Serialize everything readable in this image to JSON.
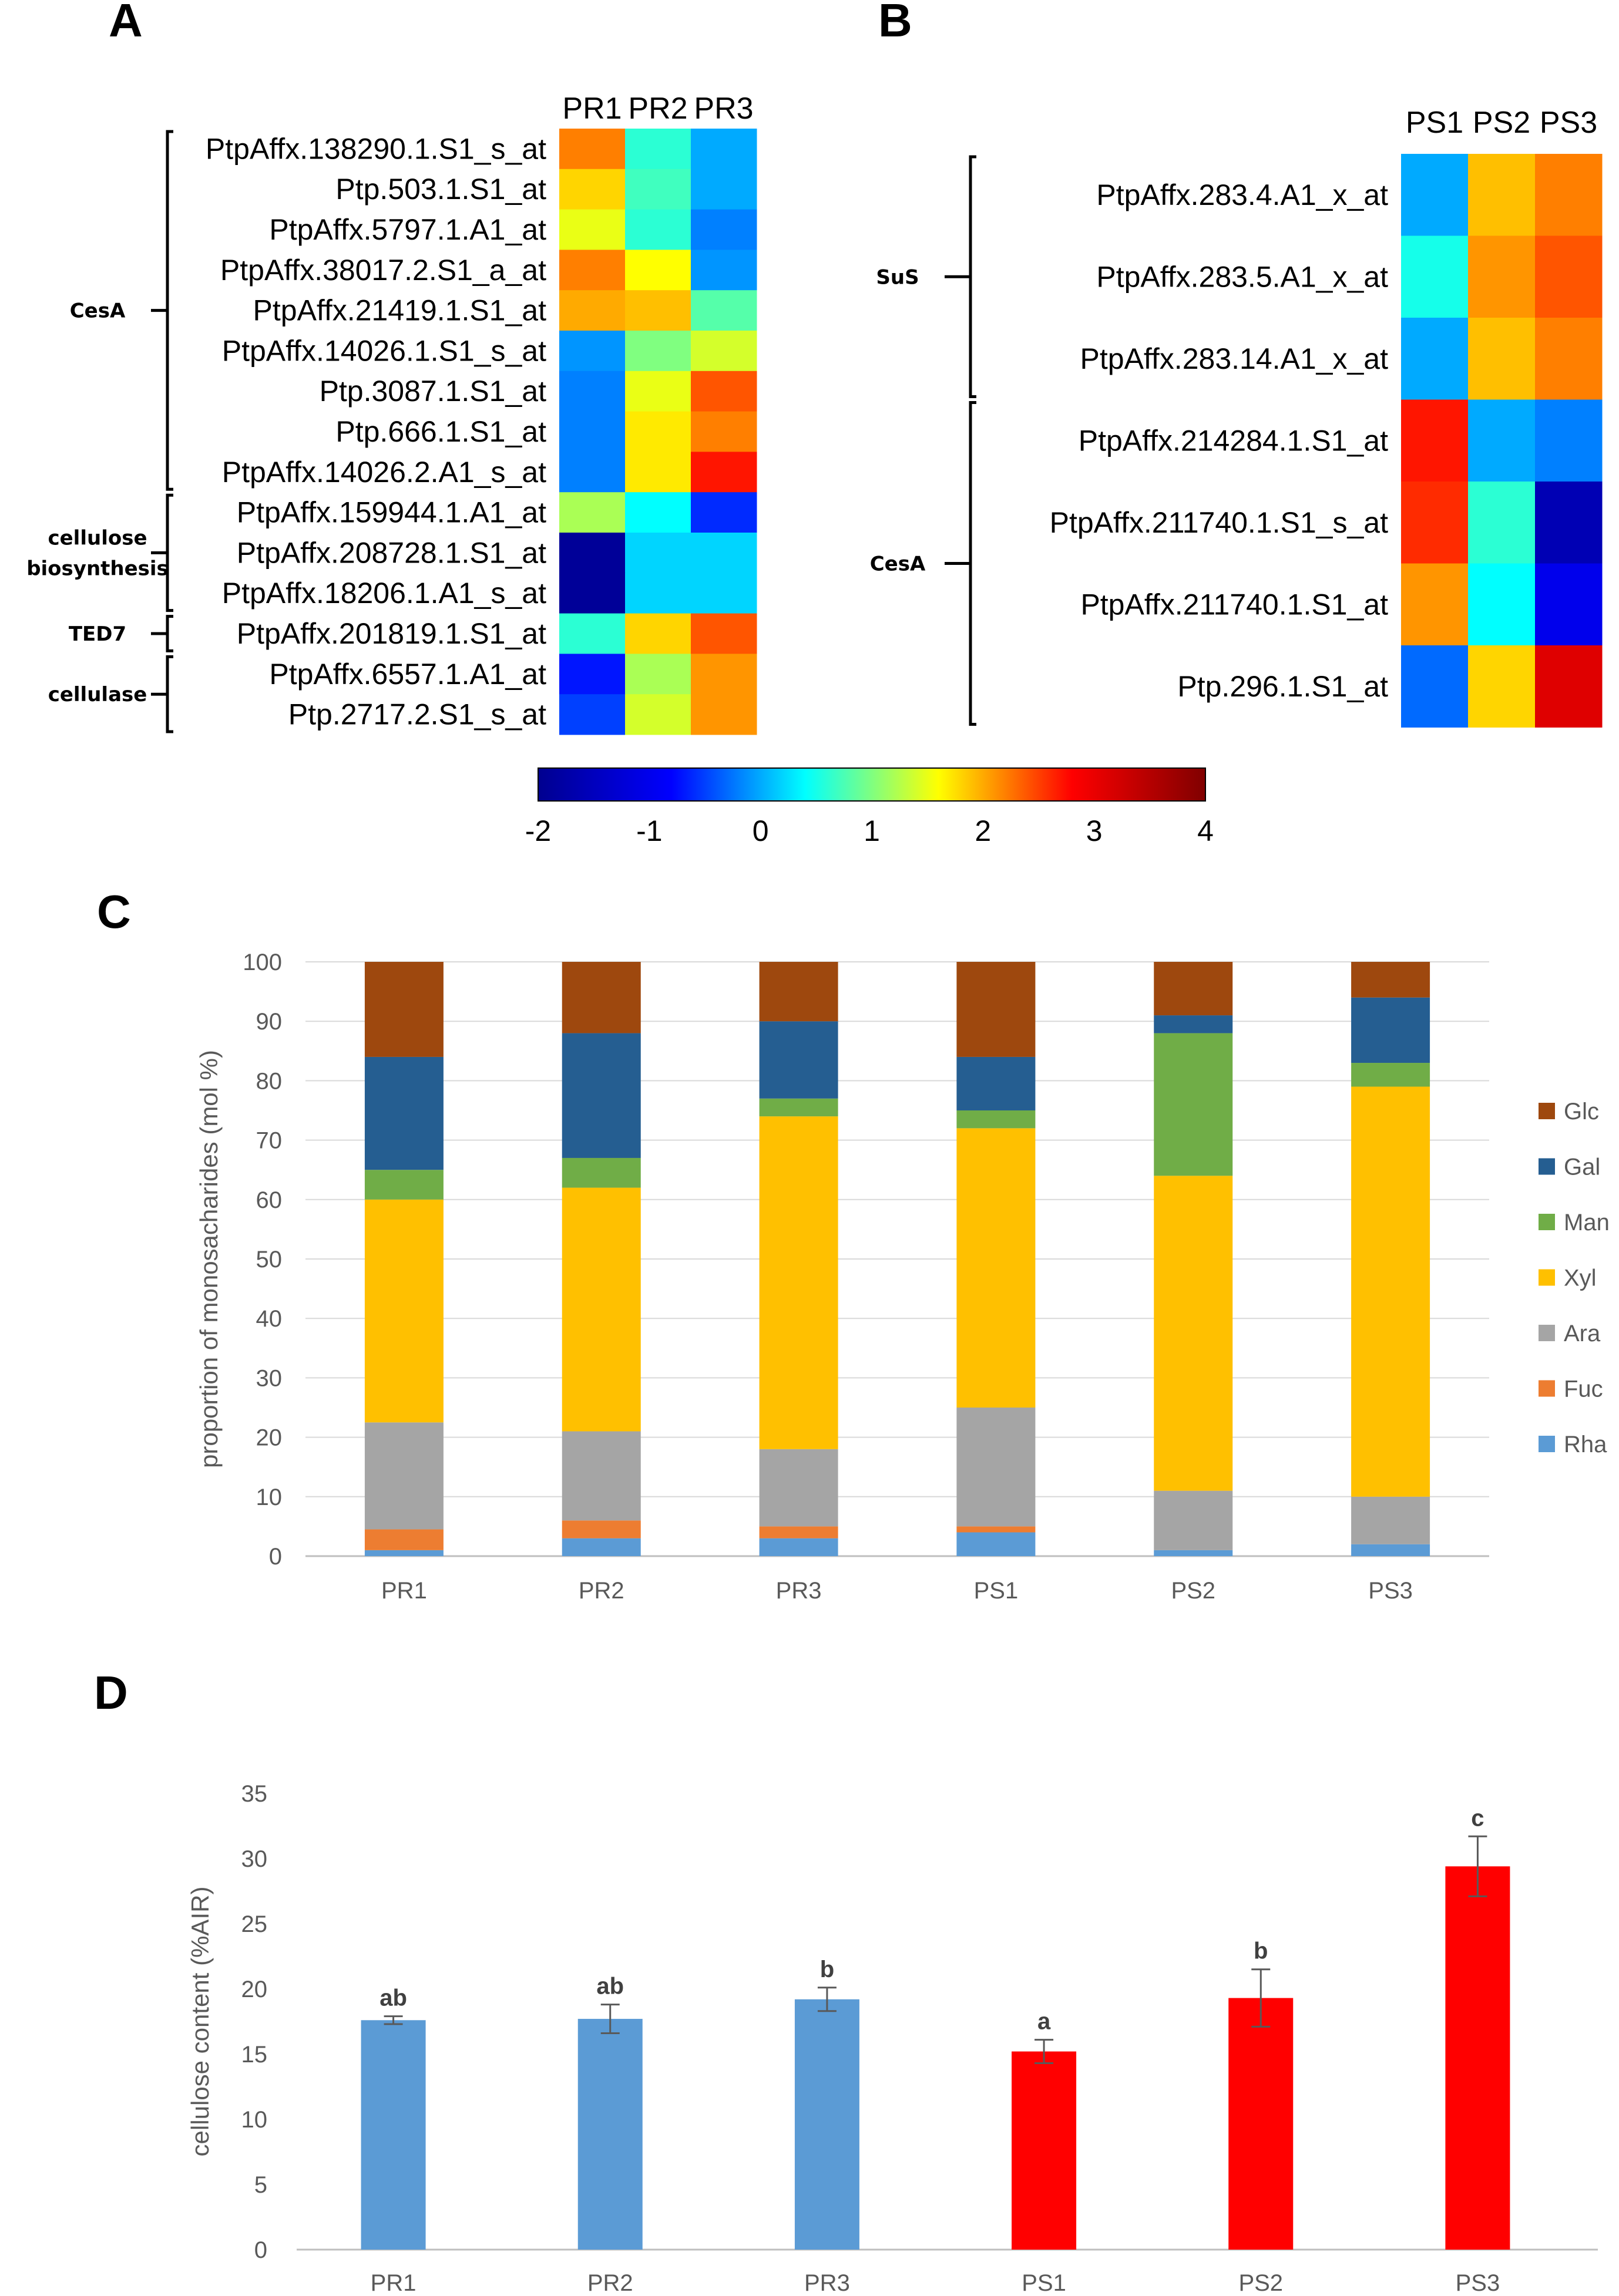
{
  "colors": {
    "colormap": [
      "#00008f",
      "#0000ff",
      "#00ffff",
      "#ffff00",
      "#ff0000",
      "#800000"
    ],
    "rha": "#5b9bd5",
    "fuc": "#ed7d31",
    "ara": "#a5a5a5",
    "xyl": "#ffc000",
    "man": "#70ad47",
    "gal": "#255e91",
    "glc": "#9e480e",
    "pr_bar": "#5b9bd5",
    "ps_bar": "#ff0000"
  },
  "chart_data": [
    {
      "panel": "A",
      "type": "heatmap",
      "columns": [
        "PR1",
        "PR2",
        "PR3"
      ],
      "rows": [
        "PtpAffx.138290.1.S1_s_at",
        "Ptp.503.1.S1_at",
        "PtpAffx.5797.1.A1_at",
        "PtpAffx.38017.2.S1_a_at",
        "PtpAffx.21419.1.S1_at",
        "PtpAffx.14026.1.S1_s_at",
        "Ptp.3087.1.S1_at",
        "Ptp.666.1.S1_at",
        "PtpAffx.14026.2.A1_s_at",
        "PtpAffx.159944.1.A1_at",
        "PtpAffx.208728.1.S1_at",
        "PtpAffx.18206.1.A1_s_at",
        "PtpAffx.201819.1.S1_at",
        "PtpAffx.6557.1.A1_at",
        "Ptp.2717.2.S1_s_at"
      ],
      "values": [
        [
          2.2,
          0.6,
          0.0
        ],
        [
          1.8,
          0.7,
          0.0
        ],
        [
          1.5,
          0.6,
          -0.2
        ],
        [
          2.2,
          1.6,
          -0.1
        ],
        [
          2.0,
          1.9,
          0.8
        ],
        [
          -0.1,
          1.0,
          1.4
        ],
        [
          -0.2,
          1.5,
          2.4
        ],
        [
          -0.2,
          1.7,
          2.2
        ],
        [
          -0.2,
          1.7,
          2.7
        ],
        [
          1.2,
          0.4,
          -0.6
        ],
        [
          -1.9,
          0.2,
          0.2
        ],
        [
          -1.9,
          0.2,
          0.2
        ],
        [
          0.6,
          1.8,
          2.4
        ],
        [
          -0.7,
          1.2,
          2.1
        ],
        [
          -0.5,
          1.4,
          2.1
        ]
      ],
      "groups": [
        {
          "label": "CesA",
          "rows": [
            0,
            8
          ]
        },
        {
          "label": "cellulose\nbiosynthesis",
          "rows": [
            9,
            11
          ]
        },
        {
          "label": "TED7",
          "rows": [
            12,
            12
          ]
        },
        {
          "label": "cellulase",
          "rows": [
            13,
            14
          ]
        }
      ]
    },
    {
      "panel": "B",
      "type": "heatmap",
      "columns": [
        "PS1",
        "PS2",
        "PS3"
      ],
      "rows": [
        "PtpAffx.283.4.A1_x_at",
        "PtpAffx.283.5.A1_x_at",
        "PtpAffx.283.14.A1_x_at",
        "PtpAffx.214284.1.S1_at",
        "PtpAffx.211740.1.S1_s_at",
        "PtpAffx.211740.1.S1_at",
        "Ptp.296.1.S1_at"
      ],
      "values": [
        [
          0.0,
          1.9,
          2.2
        ],
        [
          0.5,
          2.1,
          2.4
        ],
        [
          0.0,
          1.9,
          2.2
        ],
        [
          2.7,
          0.0,
          -0.2
        ],
        [
          2.6,
          0.6,
          -1.6
        ],
        [
          2.1,
          0.4,
          -1.0
        ],
        [
          -0.3,
          1.8,
          3.1
        ]
      ],
      "groups": [
        {
          "label": "SuS",
          "rows": [
            0,
            2
          ]
        },
        {
          "label": "CesA",
          "rows": [
            3,
            6
          ]
        }
      ]
    },
    {
      "panel": "colorbar",
      "type": "heatmap",
      "range": [
        -2,
        4
      ],
      "ticks": [
        "-2",
        "-1",
        "0",
        "1",
        "2",
        "3",
        "4"
      ]
    },
    {
      "panel": "C",
      "type": "bar",
      "stacked": true,
      "categories": [
        "PR1",
        "PR2",
        "PR3",
        "PS1",
        "PS2",
        "PS3"
      ],
      "ylabel": "proportion of monosacharides (mol %)",
      "ylim": [
        0,
        100
      ],
      "yticks": [
        "0",
        "10",
        "20",
        "30",
        "40",
        "50",
        "60",
        "70",
        "80",
        "90",
        "100"
      ],
      "series": [
        {
          "name": "Rha",
          "values": [
            1,
            3,
            3,
            4,
            1,
            2
          ]
        },
        {
          "name": "Fuc",
          "values": [
            3.5,
            3,
            2,
            1,
            0,
            0
          ]
        },
        {
          "name": "Ara",
          "values": [
            18,
            15,
            13,
            20,
            10,
            8
          ]
        },
        {
          "name": "Xyl",
          "values": [
            37.5,
            41,
            56,
            47,
            53,
            69
          ]
        },
        {
          "name": "Man",
          "values": [
            5,
            5,
            3,
            3,
            24,
            4
          ]
        },
        {
          "name": "Gal",
          "values": [
            19,
            21,
            13,
            9,
            3,
            11
          ]
        },
        {
          "name": "Glc",
          "values": [
            16,
            12,
            10,
            16,
            9,
            6
          ]
        }
      ],
      "legend": [
        "Glc",
        "Gal",
        "Man",
        "Xyl",
        "Ara",
        "Fuc",
        "Rha"
      ]
    },
    {
      "panel": "D",
      "type": "bar",
      "categories": [
        "PR1",
        "PR2",
        "PR3",
        "PS1",
        "PS2",
        "PS3"
      ],
      "values": [
        17.6,
        17.7,
        19.2,
        15.2,
        19.3,
        29.4
      ],
      "errors": [
        0.3,
        1.1,
        0.9,
        0.9,
        2.2,
        2.3
      ],
      "significance": [
        "ab",
        "ab",
        "b",
        "a",
        "b",
        "c"
      ],
      "ylabel": "cellulose content (%AIR)",
      "ylim": [
        0,
        35
      ],
      "yticks": [
        "0",
        "5",
        "10",
        "15",
        "20",
        "25",
        "30",
        "35"
      ]
    }
  ],
  "panels": {
    "a": "A",
    "b": "B",
    "c": "C",
    "d": "D"
  }
}
